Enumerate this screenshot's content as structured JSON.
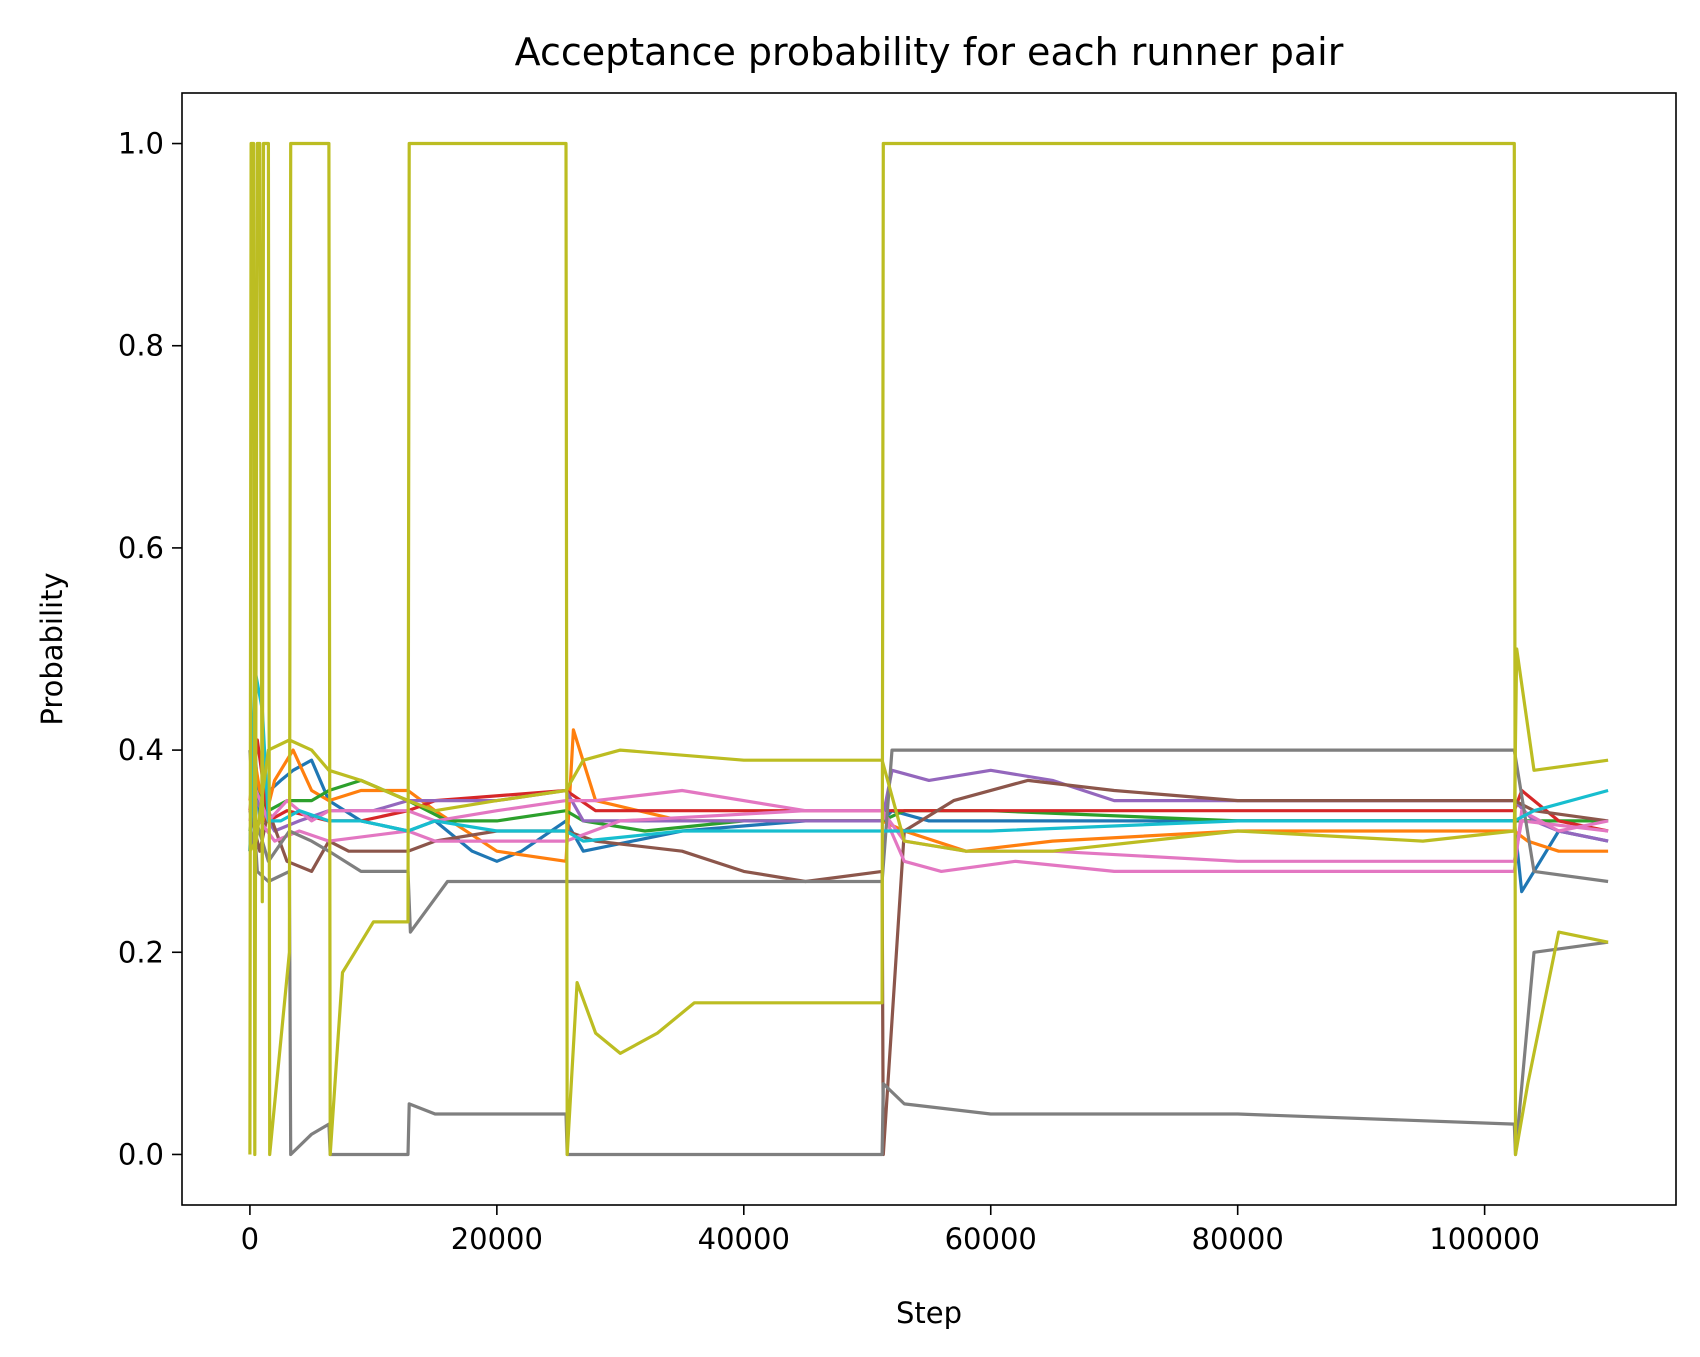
{
  "chart_data": {
    "type": "line",
    "title": "Acceptance probability for each runner pair",
    "xlabel": "Step",
    "ylabel": "Probability",
    "xlim": [
      -5500,
      115500
    ],
    "ylim": [
      -0.05,
      1.05
    ],
    "xticks": [
      0,
      20000,
      40000,
      60000,
      80000,
      100000
    ],
    "xtick_labels": [
      "0",
      "20000",
      "40000",
      "60000",
      "80000",
      "100000"
    ],
    "yticks": [
      0.0,
      0.2,
      0.4,
      0.6,
      0.8,
      1.0
    ],
    "ytick_labels": [
      "0.0",
      "0.2",
      "0.4",
      "0.6",
      "0.8",
      "1.0"
    ],
    "grid": false,
    "legend": "none",
    "series": [
      {
        "color": "#1f77b4",
        "x": [
          0,
          300,
          800,
          1600,
          2500,
          3500,
          5000,
          6400,
          9000,
          12800,
          15000,
          18000,
          20000,
          22000,
          25600,
          27000,
          35000,
          45000,
          51200,
          52000,
          55000,
          65000,
          80000,
          95000,
          102400,
          103000,
          104000,
          106000,
          110000
        ],
        "y": [
          0.3,
          0.42,
          0.33,
          0.36,
          0.37,
          0.38,
          0.39,
          0.35,
          0.33,
          0.32,
          0.33,
          0.3,
          0.29,
          0.3,
          0.33,
          0.3,
          0.32,
          0.33,
          0.33,
          0.34,
          0.33,
          0.33,
          0.33,
          0.33,
          0.33,
          0.26,
          0.28,
          0.32,
          0.31
        ]
      },
      {
        "color": "#ff7f0e",
        "x": [
          0,
          400,
          1200,
          2000,
          3500,
          5000,
          6400,
          9000,
          12800,
          15000,
          20000,
          25600,
          26200,
          28000,
          35000,
          45000,
          51200,
          53000,
          58000,
          65000,
          80000,
          95000,
          102400,
          103500,
          106000,
          110000
        ],
        "y": [
          0.35,
          0.39,
          0.33,
          0.37,
          0.4,
          0.36,
          0.35,
          0.36,
          0.36,
          0.34,
          0.3,
          0.29,
          0.42,
          0.35,
          0.33,
          0.33,
          0.33,
          0.32,
          0.3,
          0.31,
          0.32,
          0.32,
          0.32,
          0.31,
          0.3,
          0.3
        ]
      },
      {
        "color": "#2ca02c",
        "x": [
          0,
          500,
          1500,
          3000,
          5000,
          6400,
          9000,
          12800,
          16000,
          20000,
          25600,
          27000,
          32000,
          40000,
          51200,
          53000,
          60000,
          80000,
          102400,
          104000,
          110000
        ],
        "y": [
          0.32,
          0.36,
          0.34,
          0.35,
          0.35,
          0.36,
          0.37,
          0.35,
          0.33,
          0.33,
          0.34,
          0.33,
          0.32,
          0.33,
          0.33,
          0.34,
          0.34,
          0.33,
          0.33,
          0.33,
          0.33
        ]
      },
      {
        "color": "#d62728",
        "x": [
          0,
          600,
          1500,
          3000,
          6400,
          9000,
          12800,
          15000,
          25600,
          28000,
          40000,
          51200,
          54000,
          65000,
          80000,
          102400,
          103000,
          106000,
          110000
        ],
        "y": [
          0.34,
          0.41,
          0.33,
          0.34,
          0.33,
          0.33,
          0.34,
          0.35,
          0.36,
          0.34,
          0.34,
          0.34,
          0.34,
          0.34,
          0.34,
          0.34,
          0.36,
          0.33,
          0.32
        ]
      },
      {
        "color": "#9467bd",
        "x": [
          0,
          500,
          2000,
          4000,
          6400,
          10000,
          12800,
          16000,
          20000,
          25600,
          27000,
          35000,
          45000,
          51200,
          52000,
          55000,
          60000,
          65000,
          70000,
          80000,
          102400,
          104000,
          106000,
          110000
        ],
        "y": [
          0.33,
          0.35,
          0.32,
          0.33,
          0.34,
          0.34,
          0.35,
          0.35,
          0.35,
          0.36,
          0.33,
          0.33,
          0.33,
          0.33,
          0.38,
          0.37,
          0.38,
          0.37,
          0.35,
          0.35,
          0.35,
          0.33,
          0.32,
          0.31
        ]
      },
      {
        "color": "#8c564b",
        "x": [
          0,
          800,
          1500,
          3000,
          5000,
          6400,
          8000,
          12800,
          15000,
          20000,
          25600,
          28000,
          35000,
          40000,
          45000,
          51200,
          51300,
          53000,
          57000,
          63000,
          70000,
          80000,
          102400,
          104000,
          110000
        ],
        "y": [
          0.34,
          0.3,
          0.34,
          0.29,
          0.28,
          0.31,
          0.3,
          0.3,
          0.31,
          0.32,
          0.32,
          0.31,
          0.3,
          0.28,
          0.27,
          0.28,
          0.0,
          0.32,
          0.35,
          0.37,
          0.36,
          0.35,
          0.35,
          0.34,
          0.33
        ]
      },
      {
        "color": "#e377c2",
        "x": [
          0,
          500,
          1500,
          3000,
          5000,
          6400,
          9000,
          12800,
          15000,
          20000,
          25600,
          28000,
          35000,
          45000,
          51200,
          53000,
          56000,
          62000,
          70000,
          80000,
          102400,
          103000,
          106000,
          110000
        ],
        "y": [
          0.33,
          0.36,
          0.33,
          0.35,
          0.33,
          0.34,
          0.34,
          0.34,
          0.33,
          0.34,
          0.35,
          0.35,
          0.36,
          0.34,
          0.34,
          0.29,
          0.28,
          0.29,
          0.28,
          0.28,
          0.28,
          0.34,
          0.32,
          0.33
        ]
      },
      {
        "color": "#e377c2",
        "x": [
          0,
          800,
          2000,
          4000,
          6400,
          12800,
          15000,
          25600,
          30000,
          45000,
          51200,
          53000,
          58000,
          65000,
          80000,
          102400,
          103000,
          110000
        ],
        "y": [
          0.31,
          0.33,
          0.31,
          0.32,
          0.31,
          0.32,
          0.31,
          0.31,
          0.33,
          0.34,
          0.34,
          0.31,
          0.3,
          0.3,
          0.29,
          0.29,
          0.33,
          0.32
        ]
      },
      {
        "color": "#7f7f7f",
        "x": [
          0,
          600,
          1500,
          3200,
          3300,
          5000,
          6400,
          6500,
          12800,
          12900,
          15000,
          20000,
          25600,
          25700,
          26500,
          35000,
          51200,
          51300,
          53000,
          60000,
          80000,
          102400,
          102500,
          104000,
          110000
        ],
        "y": [
          0.4,
          0.28,
          0.27,
          0.28,
          0.0,
          0.02,
          0.03,
          0.0,
          0.0,
          0.05,
          0.04,
          0.04,
          0.04,
          0.0,
          0.0,
          0.0,
          0.0,
          0.07,
          0.05,
          0.04,
          0.04,
          0.03,
          0.0,
          0.2,
          0.21
        ]
      },
      {
        "color": "#7f7f7f",
        "x": [
          0,
          500,
          1500,
          3200,
          5000,
          6400,
          9000,
          12800,
          13000,
          16000,
          25600,
          28000,
          40000,
          51200,
          52000,
          60000,
          80000,
          102400,
          104000,
          110000
        ],
        "y": [
          0.3,
          0.33,
          0.29,
          0.32,
          0.31,
          0.3,
          0.28,
          0.28,
          0.22,
          0.27,
          0.27,
          0.27,
          0.27,
          0.27,
          0.4,
          0.4,
          0.4,
          0.4,
          0.28,
          0.27
        ]
      },
      {
        "color": "#17becf",
        "x": [
          0,
          400,
          1000,
          1500,
          2500,
          4000,
          6400,
          9000,
          12800,
          15000,
          20000,
          25600,
          27000,
          35000,
          51200,
          53000,
          60000,
          80000,
          102400,
          104000,
          110000
        ],
        "y": [
          0.3,
          0.48,
          0.44,
          0.33,
          0.33,
          0.34,
          0.33,
          0.33,
          0.32,
          0.33,
          0.32,
          0.32,
          0.31,
          0.32,
          0.32,
          0.32,
          0.32,
          0.33,
          0.33,
          0.34,
          0.36
        ]
      },
      {
        "color": "#bcbd22",
        "x": [
          0,
          100,
          300,
          400,
          600,
          800,
          1000,
          1100,
          1500,
          1600,
          3200,
          3300,
          6400,
          6500,
          7500,
          8500,
          10000,
          12800,
          12900,
          25600,
          25700,
          26500,
          28000,
          30000,
          33000,
          36000,
          45000,
          51200,
          51300,
          102400,
          102500,
          103500,
          106000,
          110000
        ],
        "y": [
          0.0,
          1.0,
          1.0,
          0.0,
          1.0,
          1.0,
          0.25,
          1.0,
          1.0,
          0.0,
          0.2,
          1.0,
          1.0,
          0.0,
          0.18,
          0.2,
          0.23,
          0.23,
          1.0,
          1.0,
          0.0,
          0.17,
          0.12,
          0.1,
          0.12,
          0.15,
          0.15,
          0.15,
          1.0,
          1.0,
          0.0,
          0.07,
          0.22,
          0.21
        ]
      },
      {
        "color": "#bcbd22",
        "x": [
          0,
          500,
          1500,
          3200,
          5000,
          6400,
          9000,
          12800,
          15000,
          20000,
          25600,
          27000,
          30000,
          40000,
          51200,
          53000,
          58000,
          65000,
          80000,
          95000,
          102400,
          102600,
          104000,
          110000
        ],
        "y": [
          0.3,
          0.31,
          0.4,
          0.41,
          0.4,
          0.38,
          0.37,
          0.35,
          0.34,
          0.35,
          0.36,
          0.39,
          0.4,
          0.39,
          0.39,
          0.31,
          0.3,
          0.3,
          0.32,
          0.31,
          0.32,
          0.5,
          0.38,
          0.39
        ]
      }
    ]
  }
}
